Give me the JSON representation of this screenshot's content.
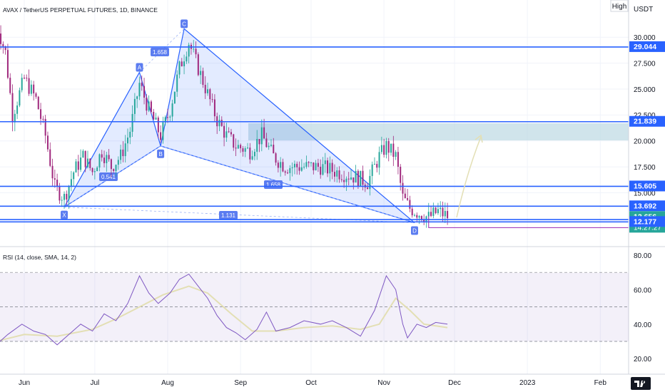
{
  "header": {
    "title": "AVAX / TetherUS PERPETUAL FUTURES, 1D, BINANCE",
    "high_button": "High",
    "currency": "USDT"
  },
  "price_axis": {
    "ticks": [
      "30.000",
      "27.500",
      "25.000",
      "22.500",
      "20.000",
      "17.500",
      "15.000"
    ],
    "ylim": [
      11.5,
      33.5
    ]
  },
  "price_labels": [
    {
      "text": "29.044",
      "kind": "level",
      "bg": "#2962ff"
    },
    {
      "text": "21.839",
      "kind": "level",
      "bg": "#2962ff"
    },
    {
      "text": "15.605",
      "kind": "level",
      "bg": "#2962ff"
    },
    {
      "text": "13.692",
      "kind": "level",
      "bg": "#2962ff"
    },
    {
      "text": "12.656",
      "kind": "last",
      "bg": "#26a69a",
      "countdown": "14:27:27"
    },
    {
      "text": "12.177",
      "kind": "level",
      "bg": "#2962ff"
    }
  ],
  "horizontal_levels": [
    29.044,
    21.839,
    15.605,
    13.692,
    12.4,
    12.177
  ],
  "harmonic_pattern": {
    "points": [
      {
        "label": "X",
        "date": "2022-06-18",
        "price": 13.6
      },
      {
        "label": "A",
        "date": "2022-07-20",
        "price": 26.6
      },
      {
        "label": "B",
        "date": "2022-07-29",
        "price": 19.5
      },
      {
        "label": "C",
        "date": "2022-08-08",
        "price": 30.8
      },
      {
        "label": "D",
        "date": "2022-11-14",
        "price": 12.1
      }
    ],
    "ratios": [
      "1.658",
      "0.541",
      "1.658",
      "1.131"
    ]
  },
  "time_axis": {
    "labels": [
      "Jun",
      "Jul",
      "Aug",
      "Sep",
      "Oct",
      "Nov",
      "Dec",
      "2023",
      "Feb"
    ]
  },
  "rsi": {
    "title": "RSI (14, close, SMA, 14, 2)",
    "ticks": [
      "80.00",
      "60.00",
      "40.00",
      "20.00"
    ],
    "ylim": [
      12,
      85
    ],
    "band": [
      30,
      70
    ]
  },
  "colors": {
    "bull": "#26a69a",
    "bear": "#a0287d",
    "level": "#2962ff",
    "rsi": "#7e57c2",
    "rsi_ma": "#e3dfb4"
  },
  "chart_data": [
    {
      "type": "candlestick",
      "title": "AVAX / TetherUS PERPETUAL FUTURES, 1D, BINANCE",
      "x_range": [
        "2022-05-20",
        "2022-11-28"
      ],
      "ylim": [
        11.5,
        33.5
      ],
      "y_ticks": [
        30,
        27.5,
        25,
        22.5,
        20,
        17.5,
        15
      ],
      "series": [
        {
          "name": "AVAX / TetherUS PERPETUAL FUTURES",
          "close_path": [
            [
              "2022-05-20",
              31.5
            ],
            [
              "2022-05-24",
              28.5
            ],
            [
              "2022-05-27",
              22.5
            ],
            [
              "2022-06-01",
              26.0
            ],
            [
              "2022-06-06",
              24.0
            ],
            [
              "2022-06-10",
              20.5
            ],
            [
              "2022-06-14",
              15.5
            ],
            [
              "2022-06-18",
              14.5
            ],
            [
              "2022-06-22",
              17.0
            ],
            [
              "2022-06-26",
              18.5
            ],
            [
              "2022-06-30",
              17.0
            ],
            [
              "2022-07-04",
              19.0
            ],
            [
              "2022-07-08",
              17.5
            ],
            [
              "2022-07-12",
              18.5
            ],
            [
              "2022-07-16",
              21.0
            ],
            [
              "2022-07-20",
              25.5
            ],
            [
              "2022-07-24",
              23.0
            ],
            [
              "2022-07-29",
              20.5
            ],
            [
              "2022-08-02",
              23.0
            ],
            [
              "2022-08-06",
              27.0
            ],
            [
              "2022-08-10",
              29.5
            ],
            [
              "2022-08-14",
              27.0
            ],
            [
              "2022-08-18",
              24.5
            ],
            [
              "2022-08-22",
              22.0
            ],
            [
              "2022-08-26",
              20.5
            ],
            [
              "2022-08-30",
              19.5
            ],
            [
              "2022-09-05",
              19.0
            ],
            [
              "2022-09-10",
              20.5
            ],
            [
              "2022-09-15",
              18.5
            ],
            [
              "2022-09-20",
              17.5
            ],
            [
              "2022-09-28",
              17.5
            ],
            [
              "2022-10-05",
              17.5
            ],
            [
              "2022-10-12",
              17.0
            ],
            [
              "2022-10-20",
              16.5
            ],
            [
              "2022-10-25",
              16.0
            ],
            [
              "2022-10-30",
              18.5
            ],
            [
              "2022-11-02",
              19.5
            ],
            [
              "2022-11-06",
              18.5
            ],
            [
              "2022-11-09",
              14.5
            ],
            [
              "2022-11-12",
              13.5
            ],
            [
              "2022-11-16",
              13.0
            ],
            [
              "2022-11-20",
              12.6
            ],
            [
              "2022-11-24",
              13.2
            ],
            [
              "2022-11-28",
              12.7
            ]
          ]
        }
      ]
    },
    {
      "type": "line",
      "title": "RSI (14, close, SMA, 14, 2)",
      "x_range": [
        "2022-05-20",
        "2022-11-28"
      ],
      "ylim": [
        12,
        85
      ],
      "y_ticks": [
        80,
        60,
        40,
        20
      ],
      "series": [
        {
          "name": "RSI",
          "points": [
            [
              "2022-05-20",
              28
            ],
            [
              "2022-05-25",
              34
            ],
            [
              "2022-05-31",
              40
            ],
            [
              "2022-06-05",
              36
            ],
            [
              "2022-06-10",
              34
            ],
            [
              "2022-06-15",
              28
            ],
            [
              "2022-06-20",
              34
            ],
            [
              "2022-06-25",
              40
            ],
            [
              "2022-06-30",
              36
            ],
            [
              "2022-07-05",
              46
            ],
            [
              "2022-07-10",
              42
            ],
            [
              "2022-07-15",
              52
            ],
            [
              "2022-07-20",
              68
            ],
            [
              "2022-07-24",
              58
            ],
            [
              "2022-07-28",
              52
            ],
            [
              "2022-08-02",
              58
            ],
            [
              "2022-08-06",
              66
            ],
            [
              "2022-08-10",
              69
            ],
            [
              "2022-08-14",
              62
            ],
            [
              "2022-08-18",
              55
            ],
            [
              "2022-08-22",
              45
            ],
            [
              "2022-08-26",
              38
            ],
            [
              "2022-08-30",
              35
            ],
            [
              "2022-09-03",
              31
            ],
            [
              "2022-09-08",
              37
            ],
            [
              "2022-09-12",
              47
            ],
            [
              "2022-09-16",
              36
            ],
            [
              "2022-09-22",
              38
            ],
            [
              "2022-09-28",
              42
            ],
            [
              "2022-10-05",
              40
            ],
            [
              "2022-10-10",
              42
            ],
            [
              "2022-10-16",
              38
            ],
            [
              "2022-10-22",
              33
            ],
            [
              "2022-10-28",
              48
            ],
            [
              "2022-11-02",
              68
            ],
            [
              "2022-11-06",
              60
            ],
            [
              "2022-11-09",
              40
            ],
            [
              "2022-11-11",
              32
            ],
            [
              "2022-11-15",
              40
            ],
            [
              "2022-11-19",
              38
            ],
            [
              "2022-11-23",
              41
            ],
            [
              "2022-11-28",
              40
            ]
          ]
        },
        {
          "name": "SMA",
          "points": [
            [
              "2022-05-20",
              30
            ],
            [
              "2022-06-01",
              34
            ],
            [
              "2022-06-15",
              33
            ],
            [
              "2022-06-30",
              37
            ],
            [
              "2022-07-10",
              43
            ],
            [
              "2022-07-20",
              50
            ],
            [
              "2022-07-30",
              57
            ],
            [
              "2022-08-10",
              62
            ],
            [
              "2022-08-18",
              58
            ],
            [
              "2022-08-28",
              46
            ],
            [
              "2022-09-06",
              36
            ],
            [
              "2022-09-16",
              36
            ],
            [
              "2022-09-28",
              38
            ],
            [
              "2022-10-10",
              39
            ],
            [
              "2022-10-22",
              37
            ],
            [
              "2022-10-30",
              40
            ],
            [
              "2022-11-06",
              55
            ],
            [
              "2022-11-12",
              48
            ],
            [
              "2022-11-18",
              40
            ],
            [
              "2022-11-28",
              38
            ]
          ]
        }
      ]
    }
  ]
}
